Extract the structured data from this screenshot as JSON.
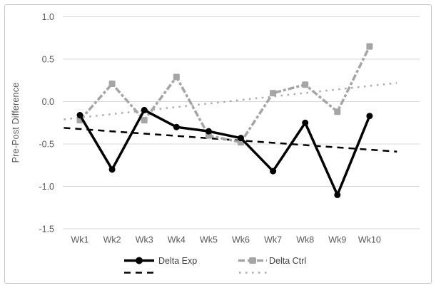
{
  "chart_data": {
    "type": "line",
    "title": "",
    "xlabel": "",
    "ylabel": "Pre-Post Difference",
    "categories": [
      "Wk1",
      "Wk2",
      "Wk3",
      "Wk4",
      "Wk5",
      "Wk6",
      "Wk7",
      "Wk8",
      "Wk9",
      "Wk10"
    ],
    "series": [
      {
        "name": "Delta Exp",
        "values": [
          -0.16,
          -0.8,
          -0.1,
          -0.3,
          -0.35,
          -0.43,
          -0.82,
          -0.25,
          -1.1,
          -0.17
        ],
        "color": "#000000",
        "marker": "circle",
        "line_style": "solid"
      },
      {
        "name": "Delta Ctrl",
        "values": [
          -0.22,
          0.21,
          -0.22,
          0.29,
          -0.4,
          -0.48,
          0.1,
          0.2,
          -0.12,
          0.65
        ],
        "color": "#a5a5a5",
        "marker": "square",
        "line_style": "dash-dot"
      }
    ],
    "trendlines": [
      {
        "for": "Delta Exp",
        "style": "dashed",
        "color": "#000000",
        "start_week": 0.5,
        "end_week": 10.85,
        "start_value": -0.31,
        "end_value": -0.59
      },
      {
        "for": "Delta Ctrl",
        "style": "dotted",
        "color": "#ababab",
        "start_week": 0.5,
        "end_week": 10.85,
        "start_value": -0.21,
        "end_value": 0.22
      }
    ],
    "ylim": [
      -1.5,
      1.0
    ],
    "yticks": [
      1.0,
      0.5,
      0.0,
      -0.5,
      -1.0,
      -1.5
    ],
    "ytick_labels": [
      "1.0",
      "0.5",
      "0.0",
      "-0.5",
      "-1.0",
      "-1.5"
    ],
    "grid": true,
    "legend_position": "bottom"
  },
  "colors": {
    "exp_series": "#000000",
    "ctrl_series": "#a5a5a5",
    "gridline": "#d9d9d9",
    "axis_text": "#595959",
    "legend_text": "#404040",
    "frame_border": "#c9c7c5"
  },
  "legend": {
    "exp_label": "Delta Exp",
    "ctrl_label": "Delta Ctrl"
  }
}
